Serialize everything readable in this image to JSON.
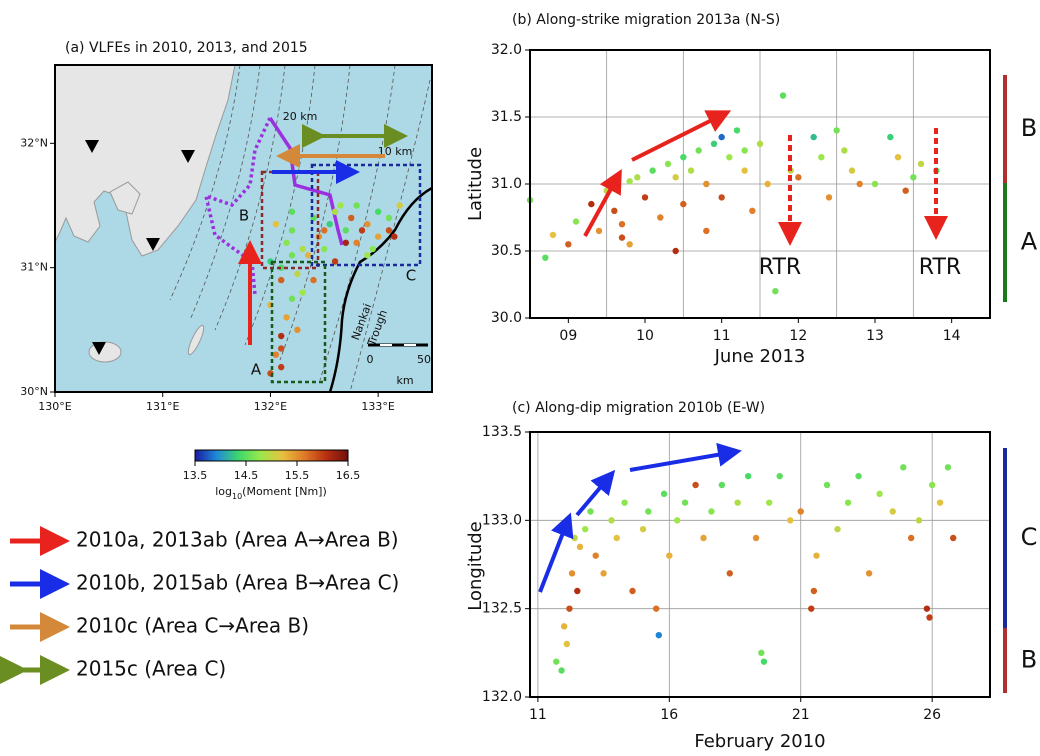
{
  "chart_data": [
    {
      "type": "map",
      "title": "(a) VLFEs in 2010, 2013, and 2015",
      "xlim": [
        130,
        133.5
      ],
      "ylim": [
        30,
        32.63
      ],
      "xticks": [
        {
          "value": 130,
          "label": "130°E"
        },
        {
          "value": 131,
          "label": "131°E"
        },
        {
          "value": 132,
          "label": "132°E"
        },
        {
          "value": 133,
          "label": "133°E"
        }
      ],
      "yticks": [
        {
          "value": 30,
          "label": "30°N"
        },
        {
          "value": 31,
          "label": "31°N"
        },
        {
          "value": 32,
          "label": "32°N"
        }
      ],
      "annotations": [
        "20 km",
        "10 km",
        "B",
        "C",
        "A",
        "Nankai",
        "Trough",
        "0",
        "50",
        "km"
      ],
      "points": {
        "x": [
          132.0,
          132.05,
          132.1,
          132.15,
          132.2,
          132.1,
          132.0,
          132.15,
          132.05,
          132.2,
          132.1,
          132.25,
          132.3,
          132.1,
          132.2,
          132.35,
          132.4,
          132.5,
          132.6,
          132.7,
          132.8,
          132.9,
          133.0,
          133.1,
          133.2,
          132.5,
          132.6,
          132.7,
          132.8,
          132.9,
          133.0,
          133.1,
          132.3,
          132.4,
          132.55,
          132.75,
          132.95,
          133.15,
          132.0,
          132.1,
          132.2,
          132.25,
          132.45,
          132.65,
          132.85
        ],
        "y": [
          30.15,
          30.3,
          30.45,
          30.6,
          30.75,
          30.9,
          31.05,
          31.2,
          31.35,
          31.45,
          30.2,
          30.5,
          30.8,
          31.0,
          31.3,
          31.1,
          31.4,
          31.3,
          31.45,
          31.2,
          31.5,
          31.35,
          31.45,
          31.3,
          31.5,
          31.15,
          31.05,
          31.3,
          31.2,
          31.1,
          31.25,
          31.4,
          31.15,
          30.9,
          31.35,
          31.4,
          31.15,
          31.25,
          30.7,
          30.35,
          31.1,
          30.95,
          31.25,
          31.5,
          31.3
        ],
        "moment": [
          15.9,
          15.6,
          16.1,
          15.4,
          14.6,
          15.8,
          14.3,
          14.7,
          15.2,
          14.5,
          16.0,
          15.5,
          14.8,
          14.4,
          14.6,
          15.3,
          14.5,
          15.7,
          14.9,
          16.2,
          14.6,
          15.5,
          14.4,
          15.9,
          15.1,
          14.7,
          16.0,
          14.5,
          15.6,
          14.8,
          15.4,
          14.6,
          14.9,
          15.7,
          14.3,
          15.8,
          14.7,
          16.1,
          15.3,
          15.9,
          14.6,
          15.0,
          15.5,
          14.8,
          16.0
        ]
      },
      "colorbar": {
        "lim": [
          13.5,
          16.5
        ],
        "ticks": [
          13.5,
          14.5,
          15.5,
          16.5
        ],
        "label": "log",
        "label_sub": "10",
        "label_tail": "(Moment [Nm])",
        "colors": [
          "#1a1aa0",
          "#1f8ad8",
          "#3ed86a",
          "#9ae84a",
          "#e8c040",
          "#e07a28",
          "#b83010",
          "#701010"
        ]
      },
      "arrow_legend": [
        {
          "label": "2010a, 2013ab (Area A→Area B)",
          "color": "#e8231e"
        },
        {
          "label": "2010b, 2015ab (Area B→Area C)",
          "color": "#1a2de6"
        },
        {
          "label": "2010c (Area C→Area B)",
          "color": "#d4893a"
        },
        {
          "label": "2015c (Area C)",
          "color": "#6b8e23"
        }
      ]
    },
    {
      "type": "scatter",
      "title": "(b) Along-strike migration 2013a (N-S)",
      "x_label": "June 2013",
      "y_label": "Latitude",
      "xlim": [
        9,
        15
      ],
      "ylim": [
        30,
        32
      ],
      "xticks": [
        {
          "value": 9.5,
          "label": "09"
        },
        {
          "value": 10.5,
          "label": "10"
        },
        {
          "value": 11.5,
          "label": "11"
        },
        {
          "value": 12.5,
          "label": "12"
        },
        {
          "value": 13.5,
          "label": "13"
        },
        {
          "value": 14.5,
          "label": "14"
        }
      ],
      "xgrid": [
        10,
        11,
        12,
        13,
        14
      ],
      "yticks": [
        {
          "value": 30,
          "label": "30.0"
        },
        30.5,
        {
          "value": 31,
          "label": "31.0"
        },
        31.5,
        {
          "value": 32,
          "label": "32.0"
        }
      ],
      "grid": true,
      "annotations": [
        "RTR",
        "RTR"
      ],
      "side_labels": [
        {
          "label": "B",
          "color": "#b03030"
        },
        {
          "label": "A",
          "color": "#1a7a1a"
        }
      ],
      "points": {
        "x": [
          9.0,
          9.2,
          9.3,
          9.5,
          9.6,
          9.8,
          9.9,
          10.0,
          10.1,
          10.1,
          10.2,
          10.3,
          10.3,
          10.4,
          10.5,
          10.6,
          10.7,
          10.8,
          10.9,
          11.0,
          11.0,
          11.1,
          11.2,
          11.3,
          11.4,
          11.5,
          11.5,
          11.6,
          11.7,
          11.8,
          11.8,
          11.9,
          12.0,
          12.1,
          12.2,
          12.3,
          12.4,
          12.5,
          12.7,
          12.8,
          12.9,
          13.0,
          13.1,
          13.2,
          13.3,
          13.5,
          13.7,
          13.8,
          13.9,
          14.0,
          14.1,
          14.3,
          10.2,
          10.9,
          11.3
        ],
        "y": [
          30.88,
          30.45,
          30.62,
          30.55,
          30.72,
          30.85,
          30.65,
          30.95,
          30.8,
          31.0,
          30.7,
          31.02,
          30.55,
          31.05,
          30.9,
          31.1,
          30.75,
          31.15,
          31.05,
          31.2,
          30.85,
          31.1,
          31.25,
          31.0,
          31.3,
          31.35,
          30.9,
          31.2,
          31.4,
          31.1,
          31.25,
          30.8,
          31.3,
          31.0,
          30.2,
          31.66,
          31.1,
          31.05,
          31.35,
          31.2,
          30.9,
          31.4,
          31.25,
          31.1,
          31.0,
          31.0,
          31.35,
          31.2,
          30.95,
          31.05,
          31.15,
          31.1,
          30.6,
          30.5,
          30.65
        ],
        "moment": [
          14.6,
          14.5,
          15.2,
          15.8,
          14.7,
          16.1,
          15.5,
          15.0,
          15.9,
          14.6,
          15.7,
          14.8,
          15.4,
          14.9,
          16.0,
          14.5,
          15.6,
          14.7,
          15.1,
          14.4,
          15.8,
          14.9,
          14.6,
          15.5,
          14.3,
          13.8,
          15.9,
          14.8,
          14.4,
          15.2,
          14.7,
          15.6,
          14.9,
          15.3,
          14.6,
          14.5,
          15.0,
          15.7,
          14.2,
          14.8,
          15.5,
          14.6,
          14.9,
          15.1,
          15.6,
          14.7,
          14.3,
          15.2,
          15.8,
          14.6,
          15.0,
          14.5,
          15.9,
          16.1,
          15.7
        ]
      }
    },
    {
      "type": "scatter",
      "title": "(c) Along-dip migration 2010b (E-W)",
      "x_label": "February 2010",
      "y_label": "Longitude",
      "xlim": [
        10.7,
        28.2
      ],
      "ylim": [
        132,
        133.5
      ],
      "xticks": [
        11,
        16,
        21,
        26
      ],
      "yticks": [
        {
          "value": 132,
          "label": "132.0"
        },
        132.5,
        {
          "value": 133,
          "label": "133.0"
        },
        133.5
      ],
      "grid": true,
      "side_labels": [
        {
          "label": "C",
          "color": "#1a2a9a"
        },
        {
          "label": "B",
          "color": "#b03030"
        }
      ],
      "points": {
        "x": [
          11.7,
          11.9,
          12.1,
          12.2,
          12.3,
          12.4,
          12.5,
          12.6,
          12.8,
          13.0,
          13.2,
          13.5,
          13.8,
          14.0,
          14.3,
          14.6,
          15.0,
          15.2,
          15.5,
          15.8,
          16.0,
          16.3,
          16.6,
          17.0,
          17.3,
          17.6,
          18.0,
          18.3,
          18.6,
          19.0,
          19.3,
          19.5,
          19.8,
          20.2,
          20.6,
          21.0,
          21.4,
          21.6,
          22.0,
          22.4,
          22.8,
          23.2,
          23.6,
          24.0,
          24.5,
          24.9,
          25.2,
          25.5,
          25.8,
          26.0,
          26.3,
          26.6,
          26.8,
          12.0,
          15.6,
          19.6,
          21.5,
          25.9
        ],
        "y": [
          132.2,
          132.15,
          132.3,
          132.5,
          132.7,
          132.9,
          132.6,
          132.85,
          132.95,
          133.05,
          132.8,
          132.7,
          133.0,
          132.9,
          133.1,
          132.6,
          132.95,
          133.05,
          132.5,
          133.15,
          132.8,
          133.0,
          133.1,
          133.2,
          132.9,
          133.05,
          133.2,
          132.7,
          133.1,
          133.25,
          132.9,
          132.25,
          133.1,
          133.25,
          133.0,
          133.05,
          132.5,
          132.8,
          133.2,
          132.95,
          133.1,
          133.25,
          132.7,
          133.15,
          133.05,
          133.3,
          132.9,
          133.0,
          132.5,
          133.2,
          133.1,
          133.3,
          132.9,
          132.4,
          132.35,
          132.2,
          132.6,
          132.45
        ],
        "moment": [
          14.6,
          14.5,
          15.2,
          15.9,
          15.5,
          15.0,
          16.1,
          15.3,
          14.8,
          14.6,
          15.6,
          15.4,
          14.9,
          15.2,
          14.7,
          15.8,
          15.1,
          14.6,
          15.7,
          14.5,
          15.3,
          14.8,
          14.6,
          15.9,
          15.4,
          14.7,
          14.5,
          15.8,
          14.9,
          14.4,
          15.5,
          14.6,
          14.8,
          14.5,
          15.2,
          15.6,
          16.0,
          15.3,
          14.6,
          15.0,
          14.7,
          14.5,
          15.5,
          14.8,
          15.1,
          14.6,
          15.7,
          15.0,
          16.1,
          14.7,
          15.2,
          14.6,
          15.9,
          15.3,
          13.9,
          14.4,
          15.8,
          16.0
        ]
      }
    }
  ]
}
